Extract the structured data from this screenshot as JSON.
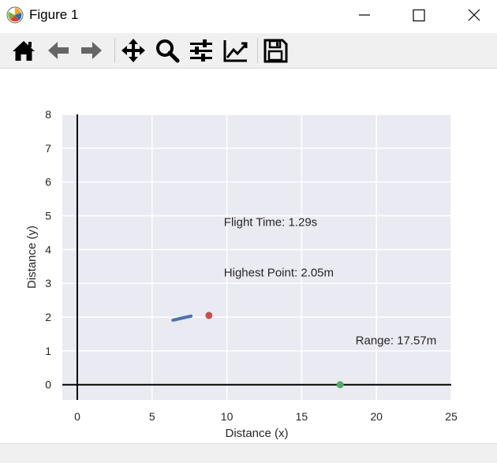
{
  "window": {
    "title": "Figure 1"
  },
  "toolbar": {
    "tools": [
      {
        "name": "home-button",
        "icon": "home-icon"
      },
      {
        "name": "back-button",
        "icon": "arrow-left-icon"
      },
      {
        "name": "forward-button",
        "icon": "arrow-right-icon"
      },
      {
        "name": "pan-button",
        "icon": "move-icon"
      },
      {
        "name": "zoom-button",
        "icon": "magnifier-icon"
      },
      {
        "name": "configure-subplots-button",
        "icon": "sliders-icon"
      },
      {
        "name": "edit-axis-button",
        "icon": "line-chart-icon"
      },
      {
        "name": "save-button",
        "icon": "floppy-disk-icon"
      }
    ]
  },
  "chart_data": {
    "type": "scatter",
    "xlabel": "Distance (x)",
    "ylabel": "Distance (y)",
    "xlim": [
      -1,
      25
    ],
    "ylim": [
      -0.45,
      8
    ],
    "xticks": [
      0,
      5,
      10,
      15,
      20,
      25
    ],
    "yticks": [
      0,
      1,
      2,
      3,
      4,
      5,
      6,
      7,
      8
    ],
    "grid": true,
    "background": "#eaeaf2",
    "series": [
      {
        "kind": "line",
        "color": "#4c72b0",
        "points": [
          [
            6.4,
            1.91
          ],
          [
            6.9,
            1.96
          ],
          [
            7.4,
            2.01
          ],
          [
            7.6,
            2.03
          ]
        ]
      },
      {
        "kind": "point",
        "color": "#c44e52",
        "points": [
          [
            8.8,
            2.05
          ]
        ]
      },
      {
        "kind": "point",
        "color": "#55a868",
        "points": [
          [
            17.57,
            0
          ]
        ]
      }
    ],
    "annotations": [
      {
        "text": "Flight Time: 1.29s",
        "x": 9.8,
        "y": 4.7
      },
      {
        "text": "Highest Point: 2.05m",
        "x": 9.8,
        "y": 3.2
      },
      {
        "text": "Range: 17.57m",
        "x": 18.6,
        "y": 1.2
      }
    ]
  }
}
